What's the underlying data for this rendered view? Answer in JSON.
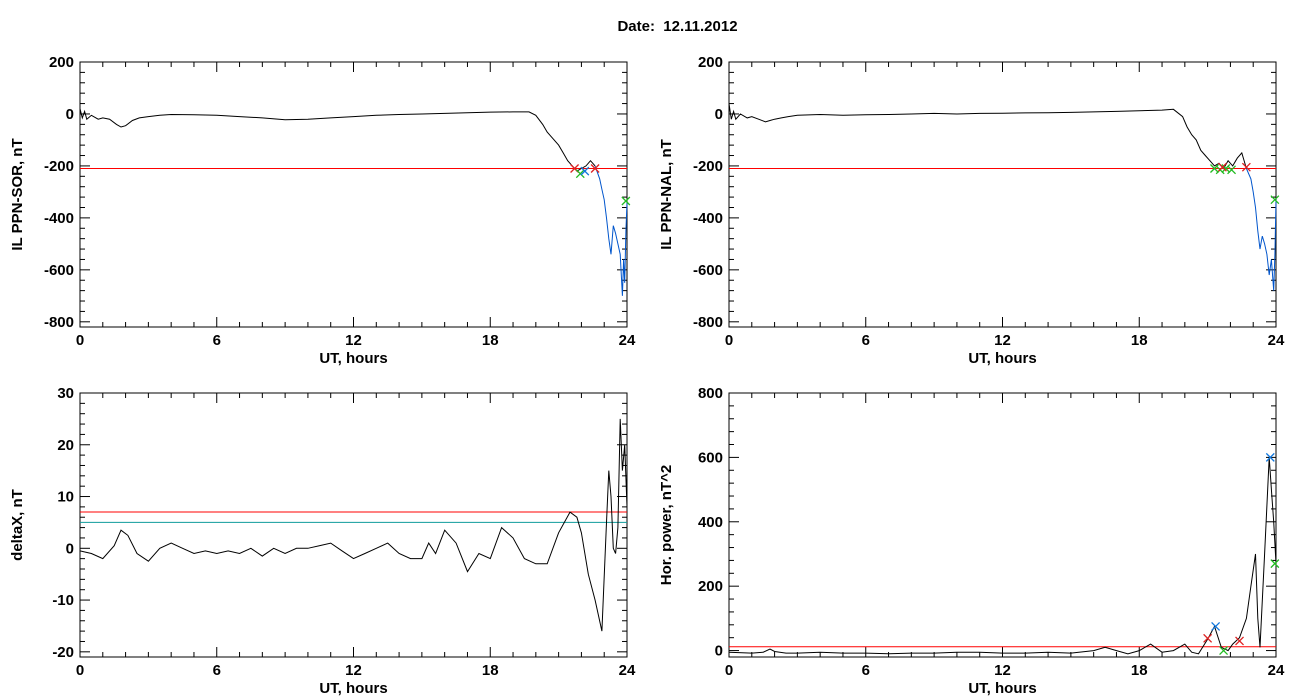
{
  "page": {
    "title": "Date:  12.11.2012"
  },
  "colors": {
    "axis": "#000000",
    "red_threshold": "#ff0000",
    "teal_threshold": "#0f9b9b",
    "blue_trace": "#0055cc",
    "green_marker": "#22bb22",
    "red_marker": "#dd2222",
    "blue_marker": "#1177dd"
  },
  "chart_data": [
    {
      "type": "line",
      "xlabel": "UT, hours",
      "ylabel": "IL PPN-SOR, nT",
      "xlim": [
        0,
        24
      ],
      "ylim": [
        -820,
        200
      ],
      "xticks": [
        0,
        6,
        12,
        18,
        24
      ],
      "yticks": [
        -800,
        -600,
        -400,
        -200,
        0,
        200
      ],
      "grid": false,
      "series": [
        {
          "color": "#000000",
          "x": [
            0,
            0.1,
            0.2,
            0.3,
            0.5,
            0.8,
            1.0,
            1.3,
            1.6,
            1.8,
            2.0,
            2.3,
            2.6,
            3.0,
            3.5,
            4.0,
            5.0,
            6.0,
            7.0,
            8.0,
            9.0,
            10.0,
            11.0,
            12.0,
            13.0,
            14.0,
            15.0,
            16.0,
            17.0,
            18.0,
            19.0,
            19.7,
            20.0,
            20.3,
            20.5,
            20.7,
            21.0,
            21.2,
            21.4,
            21.6,
            21.8,
            22.0,
            22.2,
            22.4,
            22.6
          ],
          "y": [
            20,
            -15,
            10,
            -20,
            -5,
            -20,
            -15,
            -20,
            -40,
            -50,
            -45,
            -25,
            -15,
            -10,
            -5,
            -2,
            -3,
            -5,
            -10,
            -15,
            -22,
            -20,
            -15,
            -10,
            -5,
            -2,
            0,
            2,
            5,
            7,
            8,
            8,
            -5,
            -40,
            -70,
            -90,
            -120,
            -150,
            -180,
            -200,
            -220,
            -210,
            -200,
            -180,
            -200
          ]
        },
        {
          "color": "#0055cc",
          "x": [
            22.6,
            22.8,
            22.9,
            23.0,
            23.1,
            23.2,
            23.3,
            23.4,
            23.5,
            23.6,
            23.7,
            23.75,
            23.8,
            23.85,
            23.9,
            23.95,
            24.0
          ],
          "y": [
            -200,
            -250,
            -290,
            -330,
            -400,
            -480,
            -540,
            -430,
            -460,
            -500,
            -540,
            -620,
            -700,
            -560,
            -650,
            -450,
            -340
          ]
        }
      ],
      "thresholds": [
        {
          "value": -210,
          "color": "#ff0000"
        }
      ],
      "markers": [
        {
          "x": 21.7,
          "y": -210,
          "color": "#dd2222"
        },
        {
          "x": 21.95,
          "y": -230,
          "color": "#22bb22"
        },
        {
          "x": 22.15,
          "y": -220,
          "color": "#1177dd"
        },
        {
          "x": 22.6,
          "y": -210,
          "color": "#dd2222"
        },
        {
          "x": 23.95,
          "y": -335,
          "color": "#22bb22"
        }
      ]
    },
    {
      "type": "line",
      "xlabel": "UT, hours",
      "ylabel": "IL PPN-NAL, nT",
      "xlim": [
        0,
        24
      ],
      "ylim": [
        -820,
        200
      ],
      "xticks": [
        0,
        6,
        12,
        18,
        24
      ],
      "yticks": [
        -800,
        -600,
        -400,
        -200,
        0,
        200
      ],
      "grid": false,
      "series": [
        {
          "color": "#000000",
          "x": [
            0,
            0.1,
            0.2,
            0.3,
            0.5,
            0.8,
            1.0,
            1.3,
            1.6,
            1.8,
            2.0,
            2.3,
            2.6,
            3.0,
            4.0,
            5.0,
            6.0,
            7.0,
            8.0,
            9.0,
            10.0,
            11.0,
            12.0,
            13.0,
            14.0,
            15.0,
            16.0,
            17.0,
            18.0,
            19.0,
            19.5,
            19.9,
            20.1,
            20.3,
            20.5,
            20.7,
            20.9,
            21.1,
            21.3,
            21.5,
            21.7,
            21.9,
            22.1,
            22.3,
            22.5,
            22.7
          ],
          "y": [
            40,
            -20,
            10,
            -20,
            0,
            -15,
            -10,
            -20,
            -30,
            -25,
            -20,
            -15,
            -10,
            -5,
            -2,
            -5,
            -3,
            -2,
            0,
            2,
            0,
            2,
            3,
            4,
            5,
            6,
            8,
            10,
            12,
            15,
            18,
            -10,
            -50,
            -80,
            -100,
            -140,
            -160,
            -180,
            -200,
            -190,
            -210,
            -180,
            -200,
            -170,
            -150,
            -210
          ]
        },
        {
          "color": "#0055cc",
          "x": [
            22.7,
            22.9,
            23.0,
            23.1,
            23.2,
            23.3,
            23.4,
            23.5,
            23.6,
            23.7,
            23.8,
            23.9,
            23.95,
            24.0
          ],
          "y": [
            -210,
            -250,
            -300,
            -360,
            -450,
            -520,
            -470,
            -500,
            -540,
            -620,
            -560,
            -680,
            -540,
            -330
          ]
        }
      ],
      "thresholds": [
        {
          "value": -210,
          "color": "#ff0000"
        }
      ],
      "markers": [
        {
          "x": 21.3,
          "y": -210,
          "color": "#22bb22"
        },
        {
          "x": 21.55,
          "y": -215,
          "color": "#22bb22"
        },
        {
          "x": 21.8,
          "y": -210,
          "color": "#22bb22"
        },
        {
          "x": 22.05,
          "y": -215,
          "color": "#22bb22"
        },
        {
          "x": 21.65,
          "y": -205,
          "color": "#dd2222"
        },
        {
          "x": 22.7,
          "y": -205,
          "color": "#dd2222"
        },
        {
          "x": 23.95,
          "y": -330,
          "color": "#22bb22"
        }
      ]
    },
    {
      "type": "line",
      "xlabel": "UT, hours",
      "ylabel": "deltaX, nT",
      "xlim": [
        0,
        24
      ],
      "ylim": [
        -21,
        30
      ],
      "xticks": [
        0,
        6,
        12,
        18,
        24
      ],
      "yticks": [
        -20,
        -10,
        0,
        10,
        20,
        30
      ],
      "grid": false,
      "series": [
        {
          "color": "#000000",
          "x": [
            0,
            0.5,
            1.0,
            1.5,
            1.8,
            2.1,
            2.5,
            3.0,
            3.5,
            4.0,
            4.5,
            5.0,
            5.5,
            6.0,
            6.5,
            7.0,
            7.5,
            8.0,
            8.5,
            9.0,
            9.5,
            10.0,
            10.5,
            11.0,
            11.5,
            12.0,
            12.5,
            13.0,
            13.5,
            14.0,
            14.5,
            15.0,
            15.3,
            15.6,
            16.0,
            16.5,
            17.0,
            17.5,
            18.0,
            18.5,
            19.0,
            19.5,
            20.0,
            20.5,
            21.0,
            21.5,
            21.8,
            22.0,
            22.3,
            22.6,
            22.9,
            23.1,
            23.2,
            23.3,
            23.4,
            23.5,
            23.6,
            23.7,
            23.8,
            23.9,
            24.0
          ],
          "y": [
            -0.5,
            -1,
            -2,
            0.5,
            3.5,
            2.5,
            -1,
            -2.5,
            0,
            1,
            0,
            -1,
            -0.5,
            -1,
            -0.5,
            -1,
            0,
            -1.5,
            0,
            -1,
            0,
            0,
            0.5,
            1,
            -0.5,
            -2,
            -1,
            0,
            1,
            -1,
            -2,
            -2,
            1,
            -1,
            3.5,
            1,
            -4.5,
            -1,
            -2,
            4,
            2,
            -2,
            -3,
            -3,
            3,
            7,
            6,
            3,
            -5,
            -10,
            -16,
            5,
            15,
            10,
            0,
            -1,
            4,
            25,
            15,
            20,
            8
          ]
        }
      ],
      "thresholds": [
        {
          "value": 7,
          "color": "#ff0000"
        },
        {
          "value": 5,
          "color": "#0f9b9b"
        }
      ],
      "markers": []
    },
    {
      "type": "line",
      "xlabel": "UT, hours",
      "ylabel": "Hor. power, nT^2",
      "xlim": [
        0,
        24
      ],
      "ylim": [
        -20,
        800
      ],
      "xticks": [
        0,
        6,
        12,
        18,
        24
      ],
      "yticks": [
        0,
        200,
        400,
        600,
        800
      ],
      "grid": false,
      "series": [
        {
          "color": "#000000",
          "x": [
            0,
            1.0,
            1.5,
            1.8,
            2.0,
            2.5,
            3.0,
            4.0,
            5.0,
            6.0,
            7.0,
            8.0,
            9.0,
            10.0,
            11.0,
            12.0,
            13.0,
            14.0,
            15.0,
            16.0,
            16.5,
            17.0,
            17.5,
            18.0,
            18.5,
            19.0,
            19.5,
            20.0,
            20.3,
            20.6,
            21.0,
            21.3,
            21.6,
            21.9,
            22.1,
            22.4,
            22.7,
            22.9,
            23.1,
            23.2,
            23.3,
            23.5,
            23.7,
            23.8,
            23.9,
            24.0
          ],
          "y": [
            -5,
            -8,
            -5,
            5,
            -3,
            -8,
            -8,
            -5,
            -8,
            -8,
            -10,
            -8,
            -8,
            -5,
            -5,
            -8,
            -8,
            -5,
            -8,
            0,
            10,
            0,
            -10,
            0,
            20,
            -5,
            0,
            20,
            -5,
            -10,
            35,
            75,
            10,
            0,
            20,
            40,
            100,
            200,
            300,
            100,
            10,
            300,
            600,
            500,
            400,
            270
          ]
        }
      ],
      "thresholds": [
        {
          "value": 12,
          "color": "#ff0000"
        }
      ],
      "markers": [
        {
          "x": 21.35,
          "y": 75,
          "color": "#1177dd"
        },
        {
          "x": 21.0,
          "y": 38,
          "color": "#dd2222"
        },
        {
          "x": 21.7,
          "y": 0,
          "color": "#22bb22"
        },
        {
          "x": 22.4,
          "y": 30,
          "color": "#dd2222"
        },
        {
          "x": 23.75,
          "y": 600,
          "color": "#1177dd"
        },
        {
          "x": 23.95,
          "y": 270,
          "color": "#22bb22"
        }
      ]
    }
  ]
}
